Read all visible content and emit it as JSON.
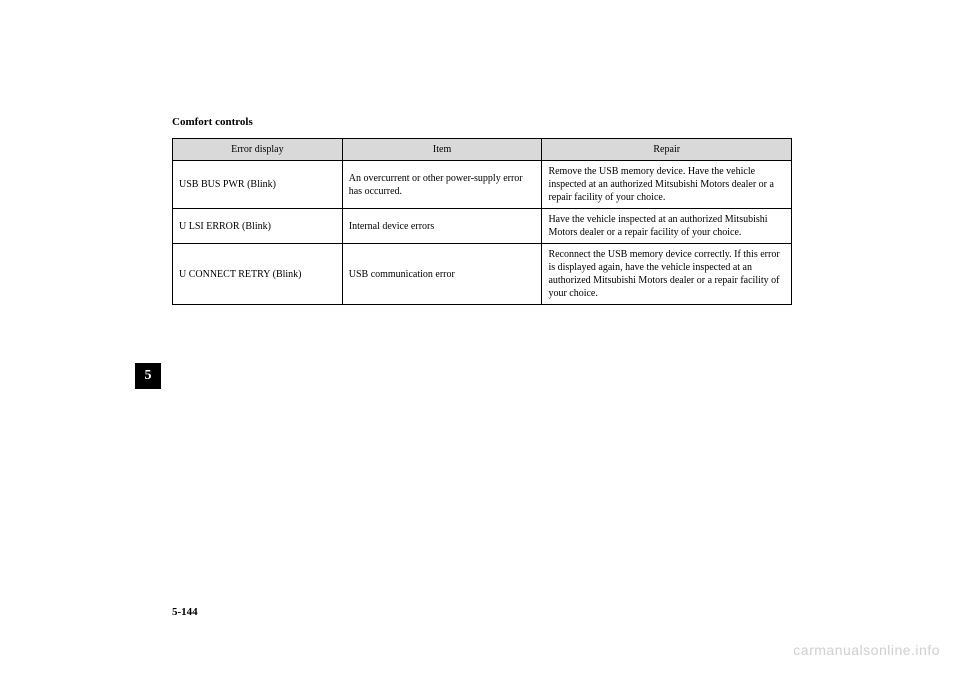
{
  "section_title": "Comfort controls",
  "section_number": "5",
  "page_number": "5-144",
  "watermark": "carmanualsonline.info",
  "table": {
    "headers": {
      "error": "Error display",
      "item": "Item",
      "repair": "Repair"
    },
    "rows": [
      {
        "error": "USB BUS PWR (Blink)",
        "item": "An overcurrent or other power-supply error has occurred.",
        "repair": "Remove the USB memory device.\nHave the vehicle inspected at an authorized Mitsubishi Motors dealer or a repair facility of your choice."
      },
      {
        "error": "U LSI ERROR (Blink)",
        "item": "Internal device errors",
        "repair": "Have the vehicle inspected at an authorized Mitsubishi Motors dealer or a repair facility of your choice."
      },
      {
        "error": "U CONNECT RETRY (Blink)",
        "item": "USB communication error",
        "repair": "Reconnect the USB memory device correctly.\nIf this error is displayed again, have the vehicle inspected at an authorized Mitsubishi Motors dealer or a repair facility of your choice."
      }
    ]
  }
}
